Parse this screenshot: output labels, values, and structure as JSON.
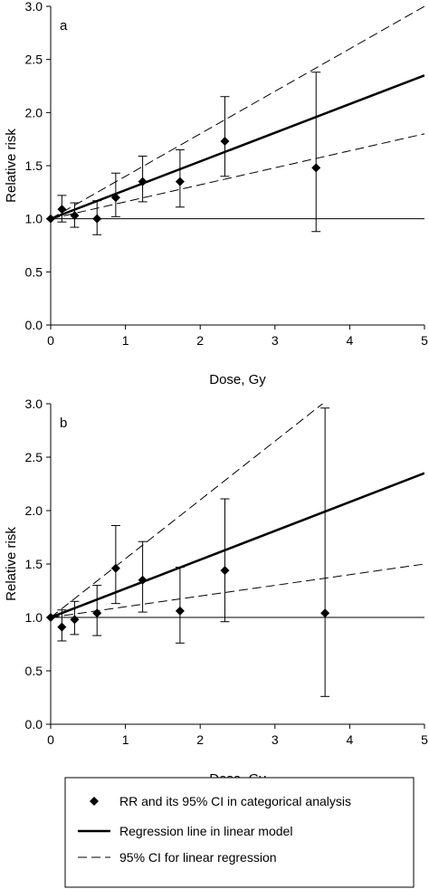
{
  "chart_data": [
    {
      "type": "scatter",
      "panel_label": "a",
      "xlabel": "Dose, Gy",
      "ylabel": "Relative risk",
      "xlim": [
        0,
        5
      ],
      "ylim": [
        0,
        3
      ],
      "xticks": [
        "0",
        "1",
        "2",
        "3",
        "4",
        "5"
      ],
      "yticks": [
        "0.0",
        "0.5",
        "1.0",
        "1.5",
        "2.0",
        "2.5",
        "3.0"
      ],
      "reference_line_y": 1.0,
      "points": [
        {
          "x": 0.0,
          "y": 1.0,
          "lo": 1.0,
          "hi": 1.0
        },
        {
          "x": 0.15,
          "y": 1.09,
          "lo": 0.97,
          "hi": 1.22
        },
        {
          "x": 0.32,
          "y": 1.03,
          "lo": 0.92,
          "hi": 1.15
        },
        {
          "x": 0.62,
          "y": 1.0,
          "lo": 0.85,
          "hi": 1.17
        },
        {
          "x": 0.87,
          "y": 1.2,
          "lo": 1.02,
          "hi": 1.43
        },
        {
          "x": 1.23,
          "y": 1.35,
          "lo": 1.16,
          "hi": 1.59
        },
        {
          "x": 1.73,
          "y": 1.35,
          "lo": 1.11,
          "hi": 1.65
        },
        {
          "x": 2.33,
          "y": 1.73,
          "lo": 1.4,
          "hi": 2.15
        },
        {
          "x": 3.55,
          "y": 1.48,
          "lo": 0.88,
          "hi": 2.38
        }
      ],
      "regression": {
        "intercept": 1.0,
        "slope": 0.27
      },
      "ci_lower": {
        "intercept": 1.0,
        "slope": 0.16
      },
      "ci_upper": {
        "intercept": 1.0,
        "slope": 0.4
      }
    },
    {
      "type": "scatter",
      "panel_label": "b",
      "xlabel": "Dose, Gy",
      "ylabel": "Relative risk",
      "xlim": [
        0,
        5
      ],
      "ylim": [
        0,
        3
      ],
      "xticks": [
        "0",
        "1",
        "2",
        "3",
        "4",
        "5"
      ],
      "yticks": [
        "0.0",
        "0.5",
        "1.0",
        "1.5",
        "2.0",
        "2.5",
        "3.0"
      ],
      "reference_line_y": 1.0,
      "points": [
        {
          "x": 0.0,
          "y": 1.0,
          "lo": 1.0,
          "hi": 1.0
        },
        {
          "x": 0.15,
          "y": 0.91,
          "lo": 0.78,
          "hi": 1.07
        },
        {
          "x": 0.32,
          "y": 0.98,
          "lo": 0.84,
          "hi": 1.15
        },
        {
          "x": 0.62,
          "y": 1.04,
          "lo": 0.83,
          "hi": 1.3
        },
        {
          "x": 0.87,
          "y": 1.46,
          "lo": 1.13,
          "hi": 1.86
        },
        {
          "x": 1.23,
          "y": 1.35,
          "lo": 1.05,
          "hi": 1.71
        },
        {
          "x": 1.73,
          "y": 1.06,
          "lo": 0.76,
          "hi": 1.47
        },
        {
          "x": 2.33,
          "y": 1.44,
          "lo": 0.96,
          "hi": 2.11
        },
        {
          "x": 3.67,
          "y": 1.04,
          "lo": 0.26,
          "hi": 2.96
        }
      ],
      "regression": {
        "intercept": 1.0,
        "slope": 0.27
      },
      "ci_lower": {
        "intercept": 1.0,
        "slope": 0.1
      },
      "ci_upper": {
        "intercept": 1.0,
        "slope": 0.55
      }
    }
  ],
  "legend": {
    "items": [
      {
        "marker": "diamond",
        "label": "RR and its 95% CI in categorical analysis"
      },
      {
        "marker": "solid-line",
        "label": "Regression line in linear model"
      },
      {
        "marker": "dashed-line",
        "label": "95% CI for linear regression"
      }
    ]
  },
  "colors": {
    "ink": "#000000",
    "background": "#ffffff"
  }
}
